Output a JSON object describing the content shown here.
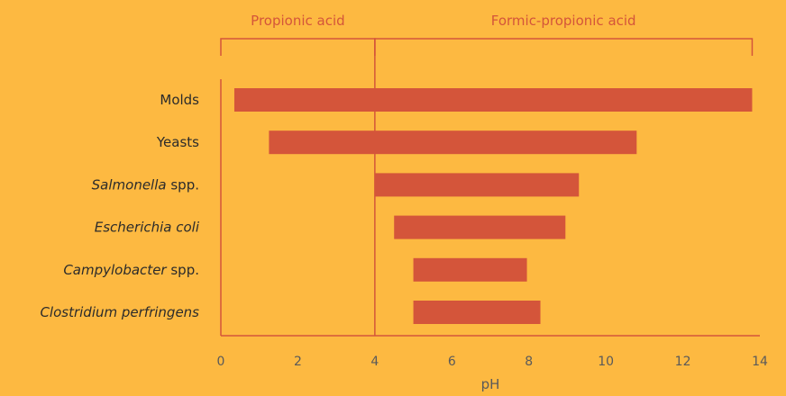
{
  "chart_data": {
    "type": "bar",
    "orientation": "horizontal",
    "xlabel": "pH",
    "xlim": [
      0,
      14
    ],
    "xticks": [
      0,
      2,
      4,
      6,
      8,
      10,
      12,
      14
    ],
    "grid": false,
    "categories": [
      {
        "parts": [
          {
            "text": "Molds",
            "italic": false
          }
        ]
      },
      {
        "parts": [
          {
            "text": "Yeasts",
            "italic": false
          }
        ]
      },
      {
        "parts": [
          {
            "text": "Salmonella",
            "italic": true
          },
          {
            "text": " spp.",
            "italic": false
          }
        ]
      },
      {
        "parts": [
          {
            "text": "Escherichia coli",
            "italic": true
          }
        ]
      },
      {
        "parts": [
          {
            "text": "Campylobacter",
            "italic": true
          },
          {
            "text": " spp.",
            "italic": false
          }
        ]
      },
      {
        "parts": [
          {
            "text": "Clostridium perfringens",
            "italic": true
          }
        ]
      }
    ],
    "ranges": [
      [
        0.35,
        13.8
      ],
      [
        1.25,
        10.8
      ],
      [
        4.0,
        9.3
      ],
      [
        4.5,
        8.95
      ],
      [
        5.0,
        7.95
      ],
      [
        5.0,
        8.3
      ]
    ],
    "reference_line": 4.0,
    "brackets": [
      {
        "label": "Propionic acid",
        "from": 0,
        "to": 4.0
      },
      {
        "label": "Formic-propionic acid",
        "from": 4.0,
        "to": 13.8
      }
    ],
    "colors": {
      "background": "#FDB941",
      "bar": "#D4553A",
      "line": "#D4553A"
    }
  }
}
